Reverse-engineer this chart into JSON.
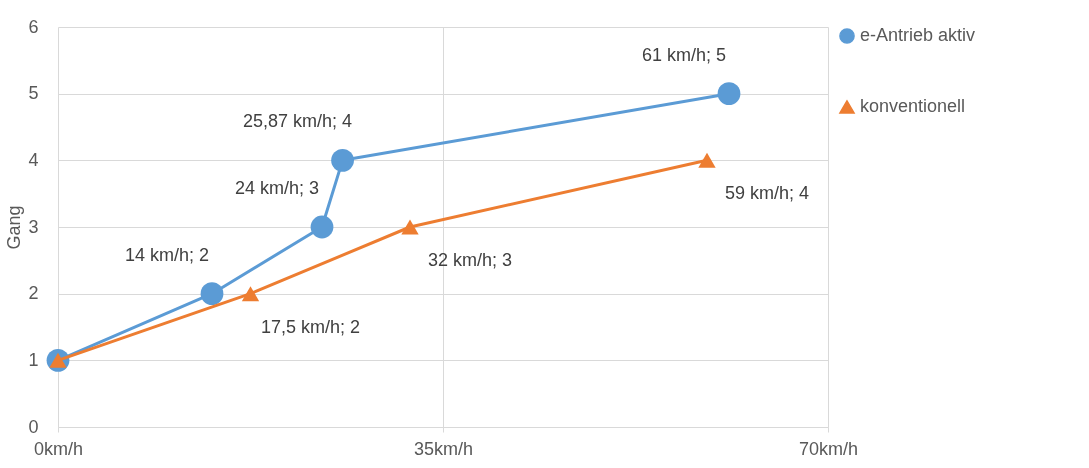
{
  "chart_data": {
    "type": "line",
    "ylabel": "Gang",
    "xlim": [
      0,
      70
    ],
    "xticks": [
      {
        "value": 0,
        "label": "0km/h"
      },
      {
        "value": 35,
        "label": "35km/h"
      },
      {
        "value": 70,
        "label": "70km/h"
      }
    ],
    "ylim": [
      0,
      6
    ],
    "yticks": [
      0,
      1,
      2,
      3,
      4,
      5,
      6
    ],
    "grid": true,
    "legend": "right",
    "series": [
      {
        "name": "e-Antrieb aktiv",
        "color": "#5b9bd5",
        "marker": "circle",
        "x": [
          0,
          14,
          24,
          25.87,
          61
        ],
        "values": [
          1,
          2,
          3,
          4,
          5
        ],
        "value_labels": [
          null,
          "14 km/h; 2",
          "24 km/h; 3",
          "25,87 km/h; 4",
          "61 km/h; 5"
        ]
      },
      {
        "name": "konventionell",
        "color": "#ed7d31",
        "marker": "triangle",
        "x": [
          0,
          17.5,
          32,
          59
        ],
        "values": [
          1,
          2,
          3,
          4
        ],
        "value_labels": [
          null,
          "17,5 km/h; 2",
          "32 km/h; 3",
          "59 km/h; 4"
        ]
      }
    ]
  }
}
